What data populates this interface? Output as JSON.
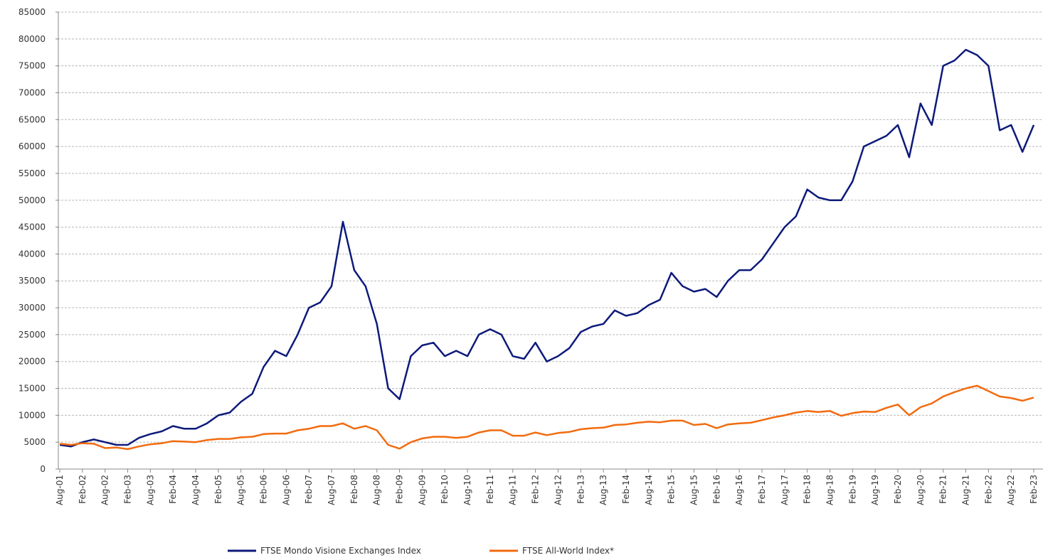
{
  "chart_data": {
    "type": "line",
    "categories": [
      "Aug-01",
      null,
      "Feb-02",
      null,
      "Aug-02",
      null,
      "Feb-03",
      null,
      "Aug-03",
      null,
      "Feb-04",
      null,
      "Aug-04",
      null,
      "Feb-05",
      null,
      "Aug-05",
      null,
      "Feb-06",
      null,
      "Aug-06",
      null,
      "Feb-07",
      null,
      "Aug-07",
      null,
      "Feb-08",
      null,
      "Aug-08",
      null,
      "Feb-09",
      null,
      "Aug-09",
      null,
      "Feb-10",
      null,
      "Aug-10",
      null,
      "Feb-11",
      null,
      "Aug-11",
      null,
      "Feb-12",
      null,
      "Aug-12",
      null,
      "Feb-13",
      null,
      "Aug-13",
      null,
      "Feb-14",
      null,
      "Aug-14",
      null,
      "Feb-15",
      null,
      "Aug-15",
      null,
      "Feb-16",
      null,
      "Aug-16",
      null,
      "Feb-17",
      null,
      "Aug-17",
      null,
      "Feb-18",
      null,
      "Aug-18",
      null,
      "Feb-19",
      null,
      "Aug-19",
      null,
      "Feb-20",
      null,
      "Aug-20",
      null,
      "Feb-21",
      null,
      "Aug-21",
      null,
      "Feb-22",
      null,
      "Aug-22",
      null,
      "Feb-23"
    ],
    "series": [
      {
        "name": "FTSE Mondo Visione Exchanges Index",
        "color": "#0d1a7a",
        "values": [
          4500,
          4200,
          5000,
          5500,
          5000,
          4500,
          4500,
          5800,
          6500,
          7000,
          8000,
          7500,
          7500,
          8500,
          10000,
          10500,
          12500,
          14000,
          19000,
          22000,
          21000,
          25000,
          30000,
          31000,
          34000,
          46000,
          37000,
          34000,
          27000,
          15000,
          13000,
          21000,
          23000,
          23500,
          21000,
          22000,
          21000,
          25000,
          26000,
          25000,
          21000,
          20500,
          23500,
          20000,
          21000,
          22500,
          25500,
          26500,
          27000,
          29500,
          28500,
          29000,
          30500,
          31500,
          36500,
          34000,
          33000,
          33500,
          32000,
          35000,
          37000,
          37000,
          39000,
          42000,
          45000,
          47000,
          52000,
          50500,
          50000,
          50000,
          53500,
          60000,
          61000,
          62000,
          64000,
          58000,
          68000,
          64000,
          75000,
          76000,
          78000,
          77000,
          75000,
          63000,
          64000,
          59000,
          64000
        ]
      },
      {
        "name": "FTSE All-World Index*",
        "color": "#f26b0f",
        "values": [
          4700,
          4500,
          4800,
          4700,
          3900,
          4000,
          3700,
          4200,
          4600,
          4800,
          5200,
          5100,
          5000,
          5400,
          5600,
          5600,
          5900,
          6000,
          6500,
          6600,
          6600,
          7200,
          7500,
          8000,
          8000,
          8500,
          7500,
          8000,
          7200,
          4500,
          3800,
          5000,
          5700,
          6000,
          6000,
          5800,
          6000,
          6800,
          7200,
          7200,
          6200,
          6200,
          6800,
          6300,
          6700,
          6900,
          7400,
          7600,
          7700,
          8200,
          8300,
          8600,
          8800,
          8700,
          9000,
          9000,
          8200,
          8400,
          7600,
          8300,
          8500,
          8600,
          9100,
          9600,
          10000,
          10500,
          10800,
          10600,
          10800,
          9900,
          10400,
          10700,
          10600,
          11400,
          12000,
          10000,
          11500,
          12200,
          13500,
          14300,
          15000,
          15500,
          14500,
          13500,
          13200,
          12700,
          13300
        ]
      }
    ],
    "ylim": [
      0,
      85000
    ],
    "yticks": [
      0,
      5000,
      10000,
      15000,
      20000,
      25000,
      30000,
      35000,
      40000,
      45000,
      50000,
      55000,
      60000,
      65000,
      70000,
      75000,
      80000,
      85000
    ],
    "grid": true,
    "legend": "bottom"
  }
}
